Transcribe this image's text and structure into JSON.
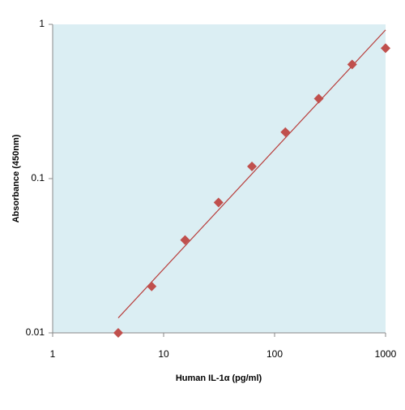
{
  "chart_data": {
    "type": "scatter",
    "x_label": "Human IL-1α (pg/ml)",
    "y_label": "Absorbance (450nm)",
    "x_log": true,
    "y_log": true,
    "xlim": [
      1,
      1000
    ],
    "ylim": [
      0.01,
      1
    ],
    "xticks": [
      1,
      10,
      100,
      1000
    ],
    "yticks": [
      0.01,
      0.1,
      1
    ],
    "background": "#dbeef3",
    "points": {
      "color": "#c0504d",
      "x": [
        3.9,
        7.8,
        15.6,
        31.25,
        62.5,
        125,
        250,
        500,
        1000
      ],
      "y": [
        0.01,
        0.02,
        0.04,
        0.07,
        0.12,
        0.2,
        0.33,
        0.55,
        0.7
      ]
    },
    "fit": {
      "color": "#b83c3a",
      "x": [
        3.9,
        1000
      ],
      "y": [
        0.0125,
        0.92
      ]
    }
  }
}
